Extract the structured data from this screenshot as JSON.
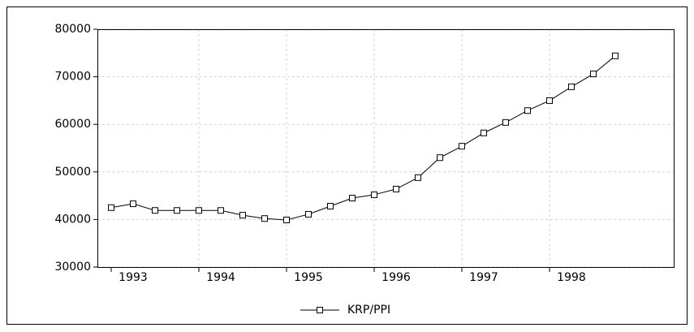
{
  "chart_data": {
    "type": "line",
    "categories": [
      null,
      "1993",
      null,
      null,
      null,
      "1994",
      null,
      null,
      null,
      "1995",
      null,
      null,
      null,
      "1996",
      null,
      null,
      null,
      "1997",
      null,
      null,
      null,
      "1998",
      null,
      null
    ],
    "series": [
      {
        "name": "KRP/PPI",
        "color": "#000000",
        "values": [
          42500,
          43300,
          41900,
          41900,
          41900,
          41900,
          40900,
          40200,
          39900,
          41100,
          42800,
          44500,
          45200,
          46400,
          48800,
          53000,
          55400,
          58200,
          60400,
          62900,
          65000,
          67900,
          70600,
          74400
        ]
      }
    ],
    "ylim": [
      30000,
      80000
    ],
    "yticks": [
      30000,
      40000,
      50000,
      60000,
      70000,
      80000
    ],
    "grid": true,
    "legend": "bottom"
  }
}
